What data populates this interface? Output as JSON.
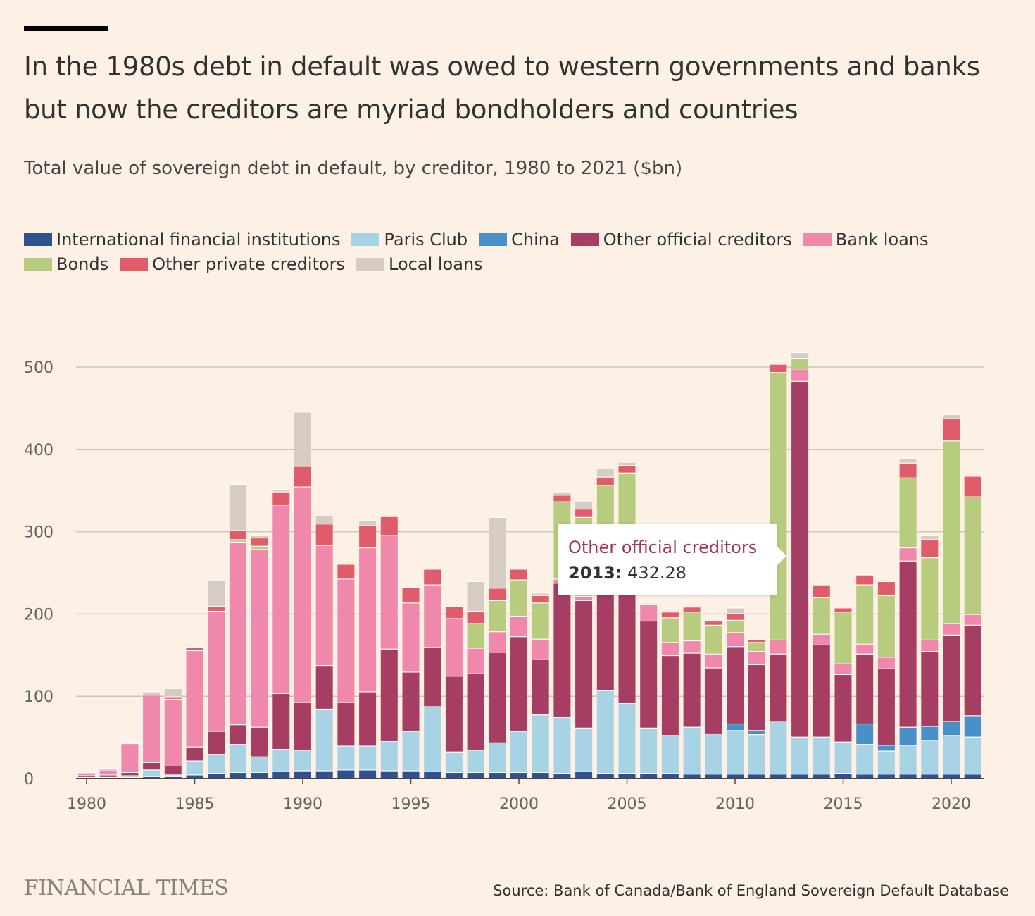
{
  "header": {
    "title": "In the 1980s debt in default was owed to western governments and banks but now the creditors are myriad bondholders and countries",
    "subtitle": "Total value of sovereign debt in default, by creditor, 1980 to 2021 ($bn)"
  },
  "tooltip": {
    "series": "Other official creditors",
    "year": "2013:",
    "value": "432.28"
  },
  "footer": {
    "logo": "FINANCIAL TIMES",
    "source": "Source: Bank of Canada/Bank of England Sovereign Default Database"
  },
  "chart_data": {
    "type": "bar",
    "stacked": true,
    "grid": true,
    "legend_position": "top-left",
    "ylim": [
      0,
      530
    ],
    "yticks": [
      0,
      100,
      200,
      300,
      400,
      500
    ],
    "xticks": [
      1980,
      1985,
      1990,
      1995,
      2000,
      2005,
      2010,
      2015,
      2020
    ],
    "categories": [
      1980,
      1981,
      1982,
      1983,
      1984,
      1985,
      1986,
      1987,
      1988,
      1989,
      1990,
      1991,
      1992,
      1993,
      1994,
      1995,
      1996,
      1997,
      1998,
      1999,
      2000,
      2001,
      2002,
      2003,
      2004,
      2005,
      2006,
      2007,
      2008,
      2009,
      2010,
      2011,
      2012,
      2013,
      2014,
      2015,
      2016,
      2017,
      2018,
      2019,
      2020,
      2021
    ],
    "series": [
      {
        "name": "International financial institutions",
        "color": "#2f528f",
        "values": [
          0,
          0,
          1,
          2,
          2,
          4,
          6,
          7,
          7,
          8,
          9,
          9,
          10,
          10,
          9,
          9,
          8,
          7,
          7,
          7,
          7,
          7,
          6,
          8,
          6,
          6,
          6,
          6,
          5,
          5,
          5,
          5,
          5,
          5,
          5,
          6,
          5,
          5,
          5,
          5,
          5,
          5
        ]
      },
      {
        "name": "Paris Club",
        "color": "#a7d3e4",
        "values": [
          1,
          1,
          2,
          8,
          2,
          17,
          23,
          34,
          19,
          27,
          25,
          75,
          29,
          29,
          36,
          48,
          79,
          25,
          27,
          36,
          50,
          70,
          68,
          53,
          101,
          85,
          55,
          46,
          57,
          49,
          53,
          48,
          64,
          45,
          45,
          38,
          36,
          28,
          35,
          41,
          47,
          45
        ]
      },
      {
        "name": "China",
        "color": "#4a90c8",
        "values": [
          0,
          0,
          0,
          0,
          0,
          0,
          0,
          0,
          0,
          0,
          0,
          0,
          0,
          0,
          0,
          0,
          0,
          0,
          0,
          0,
          0,
          0,
          0,
          0,
          0,
          0,
          0,
          0,
          0,
          0,
          8,
          5,
          0,
          0,
          0,
          0,
          25,
          7,
          22,
          17,
          17,
          26
        ]
      },
      {
        "name": "Other official creditors",
        "color": "#a63d63",
        "values": [
          2,
          3,
          4,
          9,
          12,
          17,
          28,
          24,
          36,
          68,
          58,
          53,
          53,
          66,
          112,
          72,
          72,
          92,
          93,
          110,
          115,
          67,
          163,
          155,
          152,
          135,
          130,
          97,
          90,
          80,
          94,
          80,
          82,
          432.28,
          112,
          82,
          85,
          93,
          202,
          91,
          105,
          110
        ]
      },
      {
        "name": "Bank loans",
        "color": "#ef88aa",
        "values": [
          3,
          6,
          35,
          82,
          80,
          117,
          146,
          222,
          216,
          229,
          262,
          146,
          150,
          175,
          138,
          84,
          76,
          70,
          31,
          25,
          25,
          25,
          5,
          5,
          5,
          5,
          20,
          16,
          15,
          17,
          17,
          16,
          17,
          15,
          13,
          13,
          12,
          14,
          16,
          14,
          14,
          13
        ]
      },
      {
        "name": "Bonds",
        "color": "#b7cc7f",
        "values": [
          0,
          0,
          0,
          0,
          0,
          0,
          0,
          3,
          4,
          0,
          0,
          0,
          0,
          0,
          0,
          0,
          0,
          0,
          30,
          38,
          44,
          44,
          94,
          96,
          92,
          140,
          0,
          30,
          35,
          35,
          15,
          11,
          325,
          13,
          45,
          63,
          72,
          75,
          85,
          100,
          222,
          143
        ]
      },
      {
        "name": "Other private creditors",
        "color": "#e05c6a",
        "values": [
          1,
          2,
          0,
          0,
          3,
          4,
          6,
          11,
          10,
          16,
          25,
          26,
          18,
          27,
          23,
          19,
          19,
          15,
          15,
          15,
          13,
          9,
          8,
          10,
          10,
          9,
          0,
          7,
          6,
          5,
          8,
          3,
          10,
          0,
          15,
          5,
          12,
          17,
          18,
          22,
          27,
          25
        ]
      },
      {
        "name": "Local loans",
        "color": "#d6ccc4",
        "values": [
          0,
          0,
          2,
          4,
          10,
          0,
          31,
          56,
          3,
          3,
          66,
          10,
          0,
          6,
          0,
          0,
          0,
          0,
          36,
          86,
          0,
          3,
          4,
          10,
          10,
          4,
          0,
          0,
          0,
          0,
          7,
          0,
          0,
          7,
          0,
          0,
          0,
          0,
          6,
          5,
          5,
          0
        ]
      }
    ]
  }
}
